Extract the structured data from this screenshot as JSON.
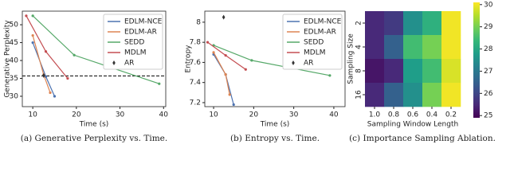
{
  "chart_data": [
    {
      "type": "line",
      "xlabel": "Time (s)",
      "ylabel": "Generative Perplexity",
      "caption": "(a) Generative Perplexity vs. Time.",
      "xlim": [
        7.6,
        40.5
      ],
      "xticks": [
        10,
        20,
        30,
        40
      ],
      "ylim": [
        27.1,
        53.8
      ],
      "yticks": [
        30,
        35,
        40,
        45,
        50
      ],
      "hline": 35.7,
      "legend": "upper right",
      "series": [
        {
          "name": "EDLM-NCE",
          "color": "#4c72b0",
          "x": [
            10,
            13,
            15
          ],
          "values": [
            45,
            35.5,
            30
          ]
        },
        {
          "name": "EDLM-AR",
          "color": "#dd8452",
          "x": [
            10,
            12.5,
            14
          ],
          "values": [
            47,
            36,
            31
          ]
        },
        {
          "name": "SEDD",
          "color": "#55a868",
          "x": [
            10,
            19.5,
            39
          ],
          "values": [
            52.5,
            41.5,
            33.5
          ]
        },
        {
          "name": "MDLM",
          "color": "#c44e52",
          "x": [
            8.5,
            13,
            18
          ],
          "values": [
            52.5,
            42.5,
            35
          ]
        },
        {
          "name": "AR",
          "color": "#333333",
          "marker": "diamond",
          "x": [
            12.5
          ],
          "values": [
            35.8
          ]
        }
      ]
    },
    {
      "type": "line",
      "xlabel": "Time (s)",
      "ylabel": "Entropy",
      "caption": "(b) Entropy vs. Time.",
      "xlim": [
        7.8,
        42.8
      ],
      "xticks": [
        10,
        20,
        30,
        40
      ],
      "ylim": [
        7.16,
        8.11
      ],
      "yticks": [
        7.2,
        7.4,
        7.6,
        7.8,
        8.0
      ],
      "legend": "upper right",
      "series": [
        {
          "name": "EDLM-NCE",
          "color": "#4c72b0",
          "x": [
            10,
            13,
            15
          ],
          "values": [
            7.68,
            7.48,
            7.18
          ]
        },
        {
          "name": "EDLM-AR",
          "color": "#dd8452",
          "x": [
            10,
            13,
            14
          ],
          "values": [
            7.7,
            7.48,
            7.28
          ]
        },
        {
          "name": "SEDD",
          "color": "#55a868",
          "x": [
            10,
            19.5,
            39
          ],
          "values": [
            7.77,
            7.62,
            7.47
          ]
        },
        {
          "name": "MDLM",
          "color": "#c44e52",
          "x": [
            8.5,
            13,
            18
          ],
          "values": [
            7.8,
            7.67,
            7.53
          ]
        },
        {
          "name": "AR",
          "color": "#333333",
          "marker": "diamond",
          "x": [
            12.5
          ],
          "values": [
            8.05
          ]
        }
      ]
    },
    {
      "type": "heatmap",
      "xlabel": "Sampling Window Length",
      "ylabel": "Sampling Size",
      "caption": "(c) Importance Sampling Ablation.",
      "colormap": "viridis",
      "x_categories": [
        "1.0",
        "0.8",
        "0.6",
        "0.4",
        "0.2"
      ],
      "y_categories": [
        "2",
        "4",
        "8",
        "16"
      ],
      "values": [
        [
          25.5,
          25.8,
          27.5,
          28.2,
          30
        ],
        [
          25.5,
          26.5,
          28.5,
          29,
          30
        ],
        [
          25.2,
          25.5,
          27.8,
          28.5,
          29.8
        ],
        [
          25.5,
          26.5,
          27.5,
          29,
          30
        ]
      ],
      "cbar_lim": [
        24.9,
        30.1
      ],
      "cbar_ticks": [
        25,
        26,
        27,
        28,
        29,
        30
      ]
    }
  ]
}
